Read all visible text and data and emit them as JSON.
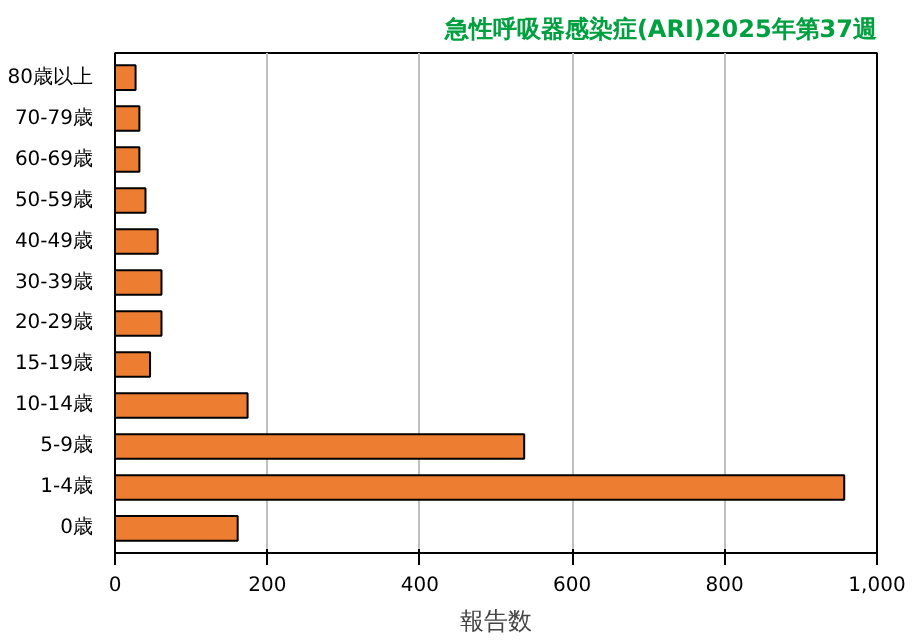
{
  "chart_data": {
    "type": "bar",
    "orientation": "horizontal",
    "title": "急性呼吸器感染症(ARI)2025年第37週",
    "xlabel": "報告数",
    "categories": [
      "80歳以上",
      "70-79歳",
      "60-69歳",
      "50-59歳",
      "40-49歳",
      "30-39歳",
      "20-29歳",
      "15-19歳",
      "10-14歳",
      "5-9歳",
      "1-4歳",
      "0歳"
    ],
    "values": [
      27,
      32,
      32,
      40,
      56,
      61,
      61,
      46,
      174,
      537,
      957,
      161
    ],
    "color": "#ed7d31",
    "xlim": [
      0,
      1000
    ],
    "xticks": [
      0,
      200,
      400,
      600,
      800,
      {
        "value": 1000,
        "label": "1,000"
      }
    ],
    "grid": "x"
  }
}
